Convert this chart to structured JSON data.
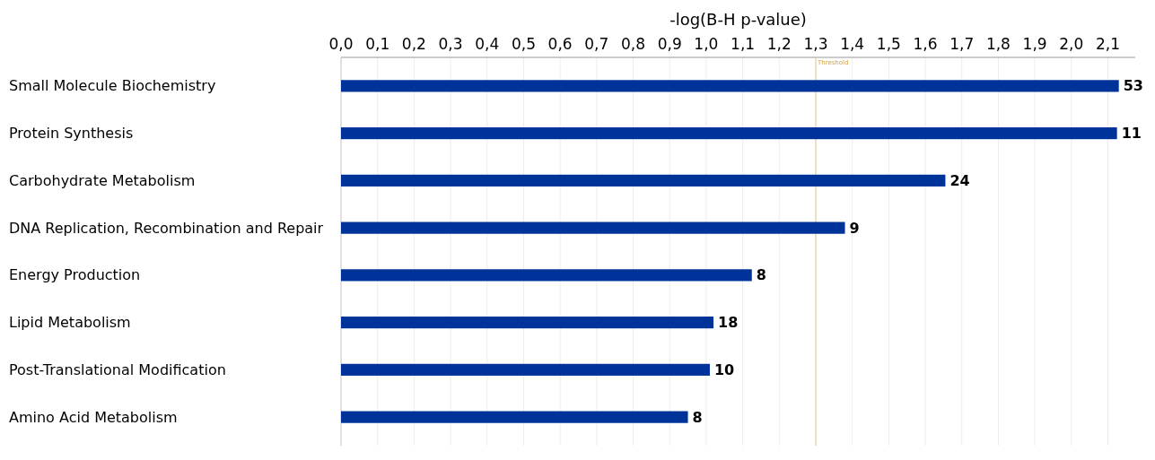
{
  "chart_data": {
    "type": "bar",
    "orientation": "horizontal",
    "xlabel": "-log(B-H p-value)",
    "categories": [
      "Small Molecule Biochemistry",
      "Protein Synthesis",
      "Carbohydrate Metabolism",
      "DNA Replication, Recombination and Repair",
      "Energy Production",
      "Lipid Metabolism",
      "Post-Translational Modification",
      "Amino Acid Metabolism"
    ],
    "values": [
      2.13,
      2.125,
      1.655,
      1.38,
      1.125,
      1.02,
      1.01,
      0.95
    ],
    "annotations": [
      {
        "text": "53",
        "x": 2.13,
        "y": "Small Molecule Biochemistry"
      },
      {
        "text": "11",
        "x": 2.125,
        "y": "Protein Synthesis"
      },
      {
        "text": "24",
        "x": 1.655,
        "y": "Carbohydrate Metabolism"
      },
      {
        "text": "9",
        "x": 1.38,
        "y": "DNA Replication, Recombination and Repair"
      },
      {
        "text": "8",
        "x": 1.125,
        "y": "Energy Production"
      },
      {
        "text": "18",
        "x": 1.02,
        "y": "Lipid Metabolism"
      },
      {
        "text": "10",
        "x": 1.01,
        "y": "Post-Translational Modification"
      },
      {
        "text": "8",
        "x": 0.95,
        "y": "Amino Acid Metabolism"
      }
    ],
    "color": "#003399",
    "xlim": [
      0,
      2.175
    ],
    "xticks": [
      {
        "value": 0,
        "label": "0,0"
      },
      {
        "value": 0.1,
        "label": "0,1"
      },
      {
        "value": 0.2,
        "label": "0,2"
      },
      {
        "value": 0.3,
        "label": "0,3"
      },
      {
        "value": 0.4,
        "label": "0,4"
      },
      {
        "value": 0.5,
        "label": "0,5"
      },
      {
        "value": 0.6,
        "label": "0,6"
      },
      {
        "value": 0.7,
        "label": "0,7"
      },
      {
        "value": 0.8,
        "label": "0,8"
      },
      {
        "value": 0.9,
        "label": "0,9"
      },
      {
        "value": 1,
        "label": "1,0"
      },
      {
        "value": 1.1,
        "label": "1,1"
      },
      {
        "value": 1.2,
        "label": "1,2"
      },
      {
        "value": 1.3,
        "label": "1,3"
      },
      {
        "value": 1.4,
        "label": "1,4"
      },
      {
        "value": 1.5,
        "label": "1,5"
      },
      {
        "value": 1.6,
        "label": "1,6"
      },
      {
        "value": 1.7,
        "label": "1,7"
      },
      {
        "value": 1.8,
        "label": "1,8"
      },
      {
        "value": 1.9,
        "label": "1,9"
      },
      {
        "value": 2,
        "label": "2,0"
      },
      {
        "value": 2.1,
        "label": "2,1"
      }
    ],
    "grid": "x",
    "ref_lines": [
      {
        "axis": "x",
        "value": 1.3,
        "label": "Threshold",
        "color": "#e8c890"
      }
    ]
  }
}
